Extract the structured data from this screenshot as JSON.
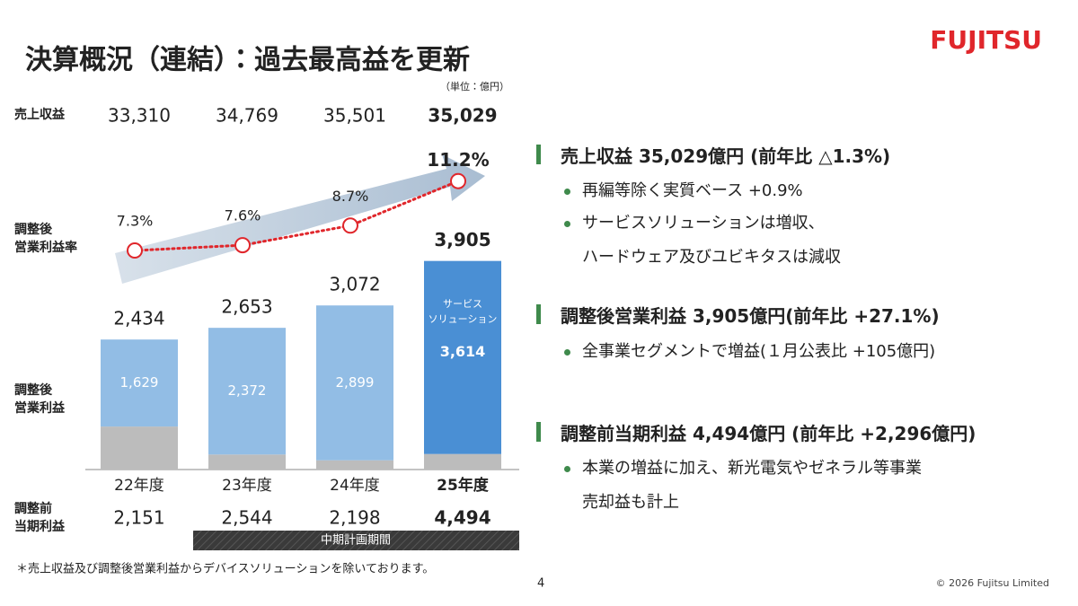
{
  "header": {
    "title": "決算概況（連結）：過去最高益を更新",
    "logo": "FUJITSU",
    "unit": "（単位：億円）"
  },
  "revenue_row": {
    "label": "売上収益",
    "values": [
      "33,310",
      "34,769",
      "35,501",
      "35,029"
    ]
  },
  "margin_row_label": "調整後\n営業利益率",
  "profit_row_label": "調整後\n営業利益",
  "net_row": {
    "label": "調整前\n当期利益",
    "values": [
      "2,151",
      "2,544",
      "2,198",
      "4,494"
    ]
  },
  "chart_data": {
    "type": "bar",
    "categories": [
      "22年度",
      "23年度",
      "24年度",
      "25年度"
    ],
    "series": [
      {
        "color": "#bcbcbc",
        "values": [
          805,
          281,
          173,
          291
        ]
      },
      {
        "name": "サービス\nソリューション",
        "colors": [
          "#92bde5",
          "#92bde5",
          "#92bde5",
          "#4a8fd4"
        ],
        "values": [
          1629,
          2372,
          2899,
          3614
        ],
        "value_labels": [
          "1,629",
          "2,372",
          "2,899",
          "3,614"
        ]
      },
      {
        "type": "line",
        "axis": "y2",
        "color": "#e0262b",
        "values": [
          7.3,
          7.6,
          8.7,
          11.2
        ],
        "value_labels": [
          "7.3%",
          "7.6%",
          "8.7%",
          "11.2%"
        ]
      }
    ],
    "total_labels": [
      "2,434",
      "2,653",
      "3,072",
      "3,905"
    ],
    "ylim": [
      0,
      4000
    ],
    "y2lim": [
      -5,
      7
    ]
  },
  "period_label": "中期計画期間",
  "sections": [
    {
      "heading": "売上収益 35,029億円 (前年比 △1.3%)",
      "bullets": [
        "再編等除く実質ベース +0.9%",
        "サービスソリューションは増収、\nハードウェア及びユビキタスは減収"
      ]
    },
    {
      "heading": "調整後営業利益 3,905億円(前年比 +27.1%)",
      "bullets": [
        "全事業セグメントで増益(１月公表比 +105億円)"
      ]
    },
    {
      "heading": "調整前当期利益 4,494億円 (前年比 +2,296億円)",
      "bullets": [
        "本業の増益に加え、新光電気やゼネラル等事業\n売却益も計上"
      ]
    }
  ],
  "footnote": "＊売上収益及び調整後営業利益からデバイスソリューションを除いております。",
  "page_number": "4",
  "copyright": "© 2026 Fujitsu Limited"
}
